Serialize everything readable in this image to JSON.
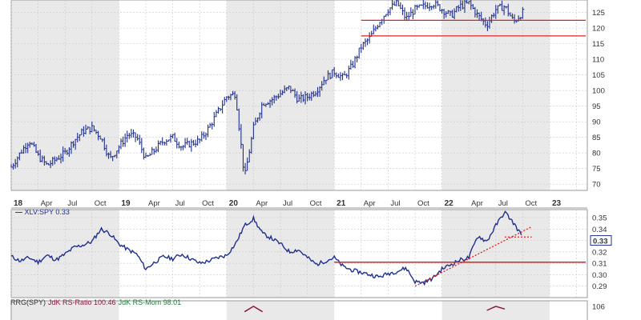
{
  "chart_data": [
    {
      "type": "bar",
      "panel": "price",
      "xaxis": {
        "labels": [
          "18",
          "Apr",
          "Jul",
          "Oct",
          "19",
          "Apr",
          "Jul",
          "Oct",
          "20",
          "Apr",
          "Jul",
          "Oct",
          "21",
          "Apr",
          "Jul",
          "Oct",
          "22",
          "Apr",
          "Jul",
          "Oct",
          "23"
        ],
        "year_labels": [
          "18",
          "19",
          "20",
          "21",
          "22",
          "23"
        ]
      },
      "yaxis_ticks": [
        70,
        75,
        80,
        85,
        90,
        95,
        100,
        105,
        110,
        115,
        120,
        125
      ],
      "ylim": [
        68,
        129
      ],
      "grid": true,
      "bar_color": "#1f2f8f",
      "path": [
        [
          "2018-01",
          75.5
        ],
        [
          "2018-02",
          80
        ],
        [
          "2018-03",
          84
        ],
        [
          "2018-04",
          79
        ],
        [
          "2018-05",
          76
        ],
        [
          "2018-06",
          78
        ],
        [
          "2018-07",
          80
        ],
        [
          "2018-08",
          84
        ],
        [
          "2018-09",
          87
        ],
        [
          "2018-10",
          88
        ],
        [
          "2018-11",
          85
        ],
        [
          "2018-12",
          78
        ],
        [
          "2019-01",
          82
        ],
        [
          "2019-02",
          86
        ],
        [
          "2019-03",
          85
        ],
        [
          "2019-04",
          78
        ],
        [
          "2019-05",
          81
        ],
        [
          "2019-06",
          84
        ],
        [
          "2019-07",
          85
        ],
        [
          "2019-08",
          82
        ],
        [
          "2019-09",
          83
        ],
        [
          "2019-10",
          84
        ],
        [
          "2019-11",
          88
        ],
        [
          "2019-12",
          93
        ],
        [
          "2020-01",
          98
        ],
        [
          "2020-02",
          99
        ],
        [
          "2020-03",
          72
        ],
        [
          "2020-04",
          88
        ],
        [
          "2020-05",
          96
        ],
        [
          "2020-06",
          97
        ],
        [
          "2020-07",
          99
        ],
        [
          "2020-08",
          101
        ],
        [
          "2020-09",
          97
        ],
        [
          "2020-10",
          98
        ],
        [
          "2020-11",
          100
        ],
        [
          "2020-12",
          104
        ],
        [
          "2021-01",
          106
        ],
        [
          "2021-02",
          104
        ],
        [
          "2021-03",
          108
        ],
        [
          "2021-04",
          114
        ],
        [
          "2021-05",
          117
        ],
        [
          "2021-06",
          122
        ],
        [
          "2021-07",
          126
        ],
        [
          "2021-08",
          128
        ],
        [
          "2021-09",
          123
        ],
        [
          "2021-10",
          126
        ],
        [
          "2021-11",
          127
        ],
        [
          "2021-12",
          128
        ],
        [
          "2022-01",
          126
        ],
        [
          "2022-02",
          124
        ],
        [
          "2022-03",
          127
        ],
        [
          "2022-04",
          128
        ],
        [
          "2022-05",
          124
        ],
        [
          "2022-06",
          121
        ],
        [
          "2022-07",
          126
        ],
        [
          "2022-08",
          127
        ],
        [
          "2022-09",
          122
        ],
        [
          "2022-10",
          125
        ]
      ],
      "horizontal_lines": [
        {
          "value": 122.5,
          "from": "2021-04",
          "color": "#e02020"
        },
        {
          "value": 117.5,
          "from": "2021-04",
          "color": "#e02020"
        }
      ]
    },
    {
      "type": "line",
      "panel": "relative_strength",
      "legend": "XLV:SPY 0.33",
      "last_value": "0.33",
      "yaxis_ticks": [
        0.29,
        0.3,
        0.31,
        0.32,
        0.33,
        0.34,
        0.35
      ],
      "ylim": [
        0.28,
        0.357
      ],
      "line_color": "#1f2f8f",
      "series": [
        [
          "2018-01",
          0.316
        ],
        [
          "2018-02",
          0.312
        ],
        [
          "2018-03",
          0.315
        ],
        [
          "2018-04",
          0.311
        ],
        [
          "2018-05",
          0.317
        ],
        [
          "2018-06",
          0.313
        ],
        [
          "2018-07",
          0.318
        ],
        [
          "2018-08",
          0.324
        ],
        [
          "2018-09",
          0.326
        ],
        [
          "2018-10",
          0.329
        ],
        [
          "2018-11",
          0.34
        ],
        [
          "2018-12",
          0.336
        ],
        [
          "2019-01",
          0.327
        ],
        [
          "2019-02",
          0.322
        ],
        [
          "2019-03",
          0.318
        ],
        [
          "2019-04",
          0.305
        ],
        [
          "2019-05",
          0.311
        ],
        [
          "2019-06",
          0.316
        ],
        [
          "2019-07",
          0.314
        ],
        [
          "2019-08",
          0.318
        ],
        [
          "2019-09",
          0.314
        ],
        [
          "2019-10",
          0.31
        ],
        [
          "2019-11",
          0.312
        ],
        [
          "2019-12",
          0.315
        ],
        [
          "2020-01",
          0.317
        ],
        [
          "2020-02",
          0.327
        ],
        [
          "2020-03",
          0.343
        ],
        [
          "2020-04",
          0.349
        ],
        [
          "2020-05",
          0.336
        ],
        [
          "2020-06",
          0.332
        ],
        [
          "2020-07",
          0.327
        ],
        [
          "2020-08",
          0.32
        ],
        [
          "2020-09",
          0.322
        ],
        [
          "2020-10",
          0.315
        ],
        [
          "2020-11",
          0.309
        ],
        [
          "2020-12",
          0.312
        ],
        [
          "2021-01",
          0.315
        ],
        [
          "2021-02",
          0.307
        ],
        [
          "2021-03",
          0.304
        ],
        [
          "2021-04",
          0.302
        ],
        [
          "2021-05",
          0.3
        ],
        [
          "2021-06",
          0.298
        ],
        [
          "2021-07",
          0.301
        ],
        [
          "2021-08",
          0.303
        ],
        [
          "2021-09",
          0.306
        ],
        [
          "2021-10",
          0.294
        ],
        [
          "2021-11",
          0.293
        ],
        [
          "2021-12",
          0.297
        ],
        [
          "2022-01",
          0.305
        ],
        [
          "2022-02",
          0.309
        ],
        [
          "2022-03",
          0.313
        ],
        [
          "2022-04",
          0.315
        ],
        [
          "2022-05",
          0.334
        ],
        [
          "2022-06",
          0.329
        ],
        [
          "2022-07",
          0.343
        ],
        [
          "2022-08",
          0.355
        ],
        [
          "2022-09",
          0.345
        ],
        [
          "2022-10",
          0.333
        ]
      ],
      "horizontal_lines": [
        {
          "value": 0.311,
          "from": "2021-01",
          "color": "#e02020"
        }
      ],
      "trendlines": [
        {
          "from": [
            "2021-10",
            0.29
          ],
          "to": [
            "2022-11",
            0.342
          ],
          "color": "#e02020",
          "style": "dotted"
        },
        {
          "from": [
            "2022-08",
            0.333
          ],
          "to": [
            "2022-11",
            0.333
          ],
          "color": "#e02020",
          "style": "dotted"
        }
      ]
    },
    {
      "type": "line",
      "panel": "rrg",
      "legend": {
        "prefix": "RRG(SPY)",
        "ratio_label": "JdK RS-Ratio 100.46",
        "mom_label": "JdK RS-Mom 98.01"
      },
      "yaxis_ticks": [
        106
      ],
      "ylim": [
        101,
        108
      ],
      "series": [
        {
          "name": "JdK RS-Ratio",
          "color": "#8b1a3a",
          "values": [
            [
              "2020-03",
              104
            ],
            [
              "2020-04",
              106
            ],
            [
              "2020-05",
              104
            ],
            [
              "2022-06",
              104.5
            ],
            [
              "2022-07",
              106
            ],
            [
              "2022-08",
              105
            ]
          ]
        }
      ]
    }
  ],
  "colors": {
    "band": "#e9e9e9",
    "grid": "#c8c8c8",
    "price_bar": "#1f2f8f",
    "rs_line": "#1f2f8f",
    "support": "#e02020",
    "rrg": "#8b1a3a"
  }
}
